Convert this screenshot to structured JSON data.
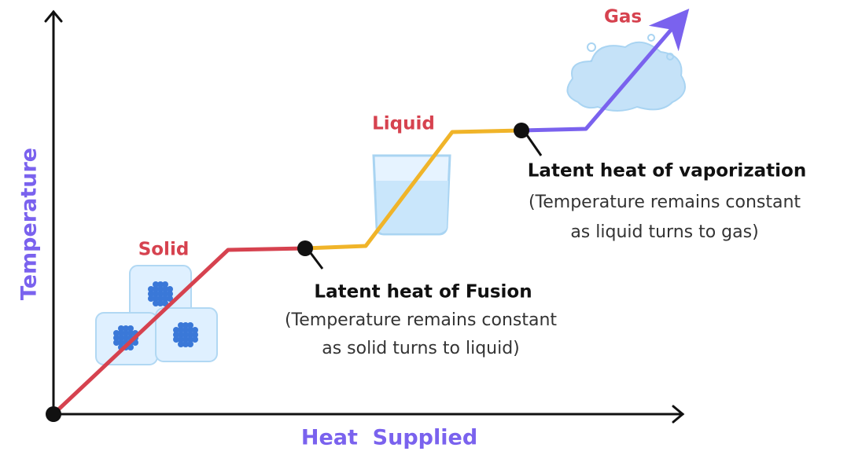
{
  "axes": {
    "y_label": "Temperature",
    "x_label": "Heat  Supplied"
  },
  "phases": [
    {
      "label": "Solid"
    },
    {
      "label": "Liquid"
    },
    {
      "label": "Gas"
    }
  ],
  "annotations": [
    {
      "title": "Latent heat of Fusion",
      "lines": [
        "(Temperature remains constant",
        "as solid turns to liquid)"
      ]
    },
    {
      "title": "Latent heat of vaporization",
      "lines": [
        "(Temperature remains constant",
        "as liquid turns to gas)"
      ]
    }
  ]
}
